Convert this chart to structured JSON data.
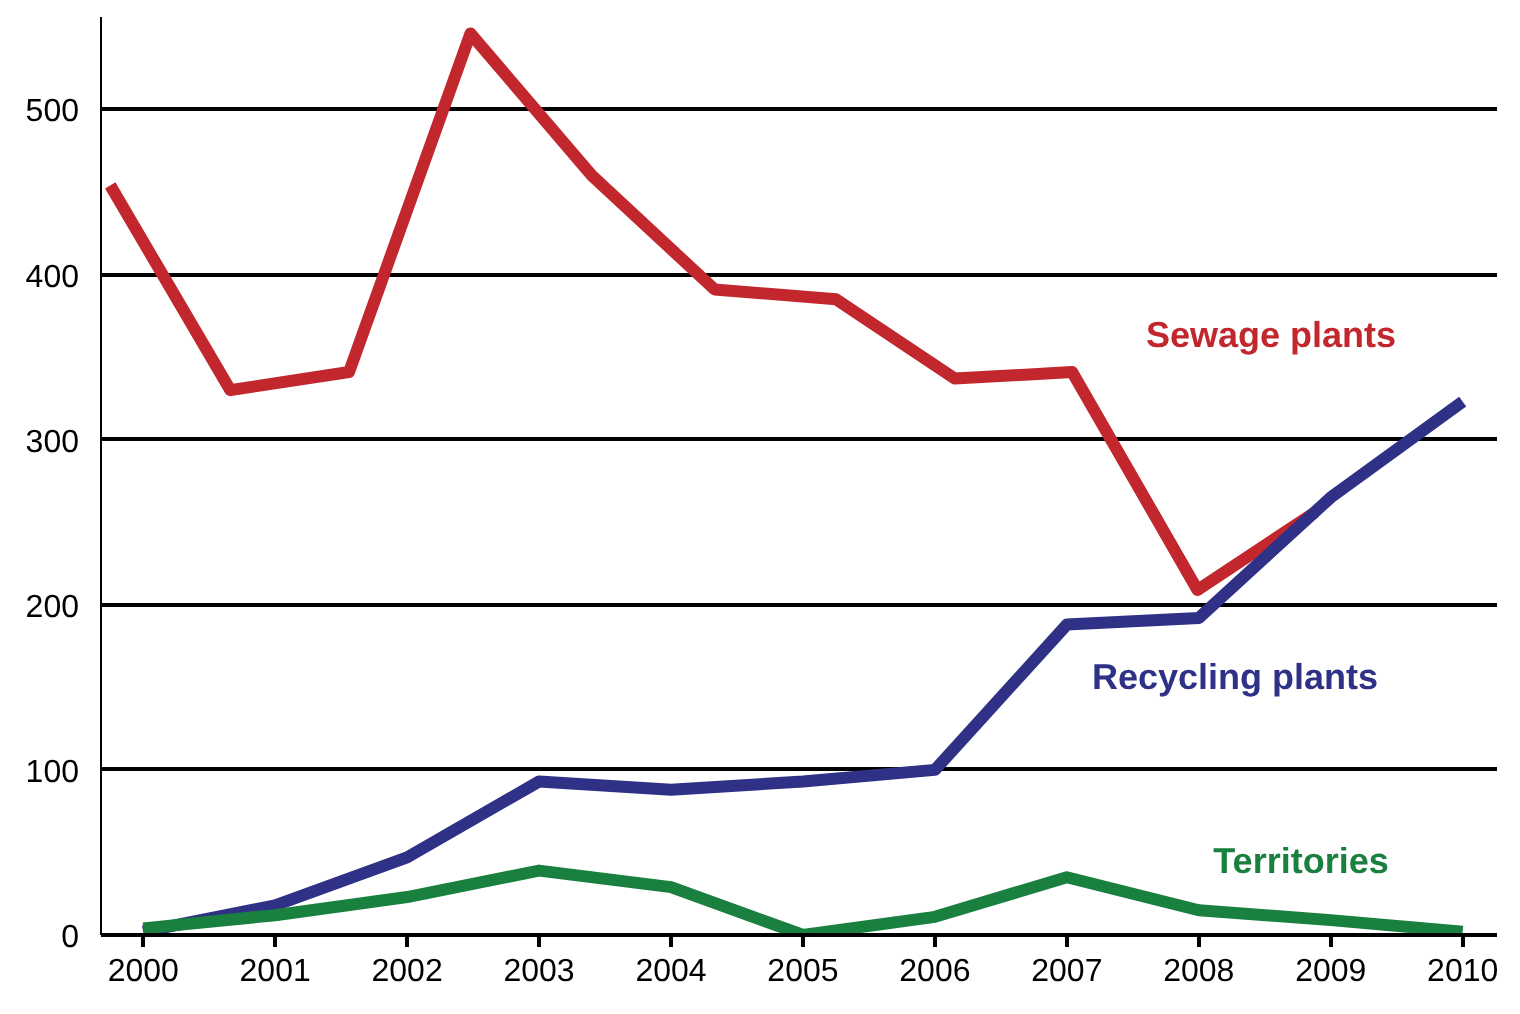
{
  "chart_data": {
    "type": "line",
    "xlim": [
      1999.68,
      2010.26
    ],
    "ylim": [
      0,
      556
    ],
    "xticks": [
      2000,
      2001,
      2002,
      2003,
      2004,
      2005,
      2006,
      2007,
      2008,
      2009,
      2010
    ],
    "yticks": [
      0,
      100,
      200,
      300,
      400,
      500
    ],
    "grid": "y",
    "line_style": "solid",
    "marker": "none",
    "series": [
      {
        "name": "Sewage plants",
        "color": "#c1272d",
        "x": [
          1999.75,
          2000.66,
          2001.56,
          2002.48,
          2003.4,
          2004.33,
          2005.25,
          2006.15,
          2007.04,
          2007.99,
          2008.88
        ],
        "values": [
          454,
          330,
          341,
          546,
          460,
          391,
          385,
          337,
          341,
          209,
          256
        ]
      },
      {
        "name": "Recycling plants",
        "color": "#2e3185",
        "x": [
          2000,
          2001,
          2002,
          2003,
          2004,
          2005,
          2006,
          2007,
          2008,
          2009,
          2010
        ],
        "values": [
          2,
          18,
          47,
          93,
          88,
          93,
          100,
          188,
          192,
          265,
          323
        ]
      },
      {
        "name": "Territories",
        "color": "#1a8040",
        "x": [
          2000,
          2001,
          2002,
          2003,
          2004,
          2005,
          2006,
          2007,
          2008,
          2009,
          2010
        ],
        "values": [
          4,
          12,
          23,
          39,
          29,
          0,
          11,
          35,
          15,
          9,
          2
        ]
      }
    ]
  }
}
